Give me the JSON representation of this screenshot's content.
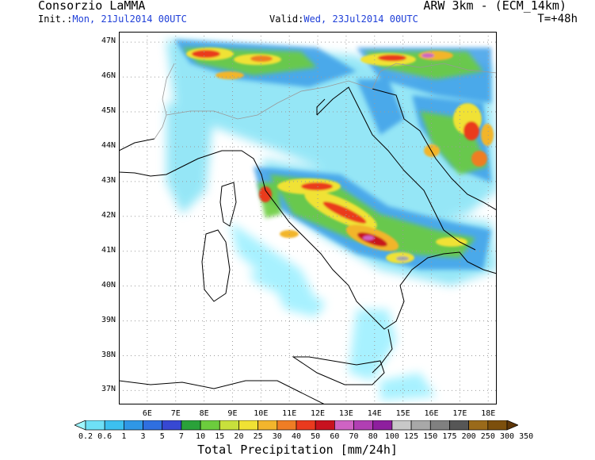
{
  "header": {
    "title": "Consorzio LaMMA",
    "model": "ARW 3km - (ECM_14km)",
    "init_label": "Init.:",
    "init_value": "Mon, 21Jul2014 00UTC",
    "valid_label": "Valid:",
    "valid_value": "Wed, 23Jul2014 00UTC",
    "lead_time": "T=+48h"
  },
  "map": {
    "lat_labels": [
      "47N",
      "46N",
      "45N",
      "44N",
      "43N",
      "42N",
      "41N",
      "40N",
      "39N",
      "38N",
      "37N"
    ],
    "lon_labels": [
      "6E",
      "7E",
      "8E",
      "9E",
      "10E",
      "11E",
      "12E",
      "13E",
      "14E",
      "15E",
      "16E",
      "17E",
      "18E"
    ],
    "lat_range": [
      36.6,
      47.3
    ],
    "lon_range": [
      5.0,
      18.3
    ],
    "grid": "dotted",
    "coastline_color": "#000000",
    "border_color": "#888888"
  },
  "legend": {
    "title": "Total Precipitation [mm/24h]",
    "levels": [
      "0.2",
      "0.6",
      "1",
      "3",
      "5",
      "7",
      "10",
      "15",
      "20",
      "25",
      "30",
      "40",
      "50",
      "60",
      "70",
      "80",
      "100",
      "125",
      "150",
      "175",
      "200",
      "250",
      "300",
      "350"
    ],
    "colors": [
      "#9ef7ff",
      "#6ee0f6",
      "#3cc0ef",
      "#2f97e6",
      "#2f6fe0",
      "#3748d3",
      "#2aa23a",
      "#6ccc3d",
      "#c8e03c",
      "#f0e234",
      "#f2b52c",
      "#ef7d24",
      "#ea3a1e",
      "#c8121f",
      "#cf63c3",
      "#b13fb3",
      "#8e1f9e",
      "#c8c8c8",
      "#a8a8a8",
      "#808080",
      "#565656",
      "#9a6a1a",
      "#7c4f0c",
      "#5e3608"
    ]
  }
}
